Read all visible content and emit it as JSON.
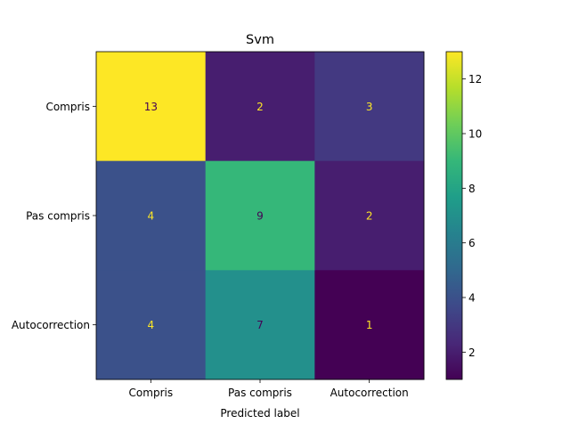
{
  "chart_data": {
    "type": "heatmap",
    "title": "Svm",
    "xlabel": "Predicted label",
    "ylabel": "",
    "x_categories": [
      "Compris",
      "Pas compris",
      "Autocorrection"
    ],
    "y_categories": [
      "Compris",
      "Pas compris",
      "Autocorrection"
    ],
    "matrix": [
      [
        13,
        2,
        3
      ],
      [
        4,
        9,
        2
      ],
      [
        4,
        7,
        1
      ]
    ],
    "colormap": "viridis",
    "value_range": [
      1,
      13
    ],
    "colorbar_ticks": [
      "2",
      "4",
      "6",
      "8",
      "10",
      "12"
    ],
    "text_colors": {
      "light": "#fde725",
      "dark": "#440154"
    },
    "grid": false
  }
}
